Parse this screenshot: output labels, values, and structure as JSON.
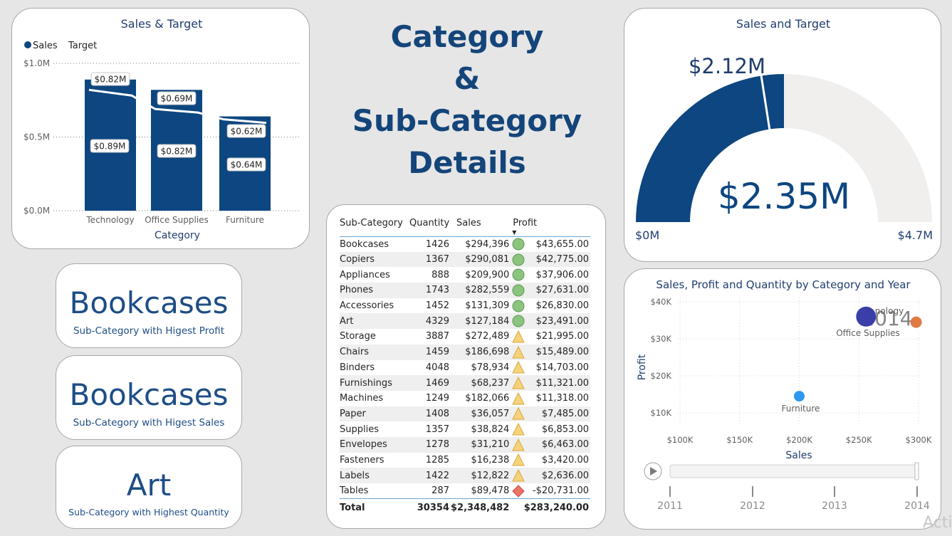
{
  "page_title": [
    "Category",
    "&",
    "Sub-Category",
    "Details"
  ],
  "bar_chart": {
    "title": "Sales & Target",
    "legend": [
      "Sales",
      "Target"
    ],
    "y_ticks": [
      "$1.0M",
      "$0.5M",
      "$0.0M"
    ],
    "x_label": "Category",
    "colors": {
      "sales": "#0d4680",
      "target": "#ffffff"
    }
  },
  "chart_data": [
    {
      "type": "bar",
      "title": "Sales & Target",
      "categories": [
        "Technology",
        "Office Supplies",
        "Furniture"
      ],
      "series": [
        {
          "name": "Sales",
          "values": [
            0.89,
            0.82,
            0.64
          ],
          "labels": [
            "$0.89M",
            "$0.82M",
            "$0.64M"
          ]
        },
        {
          "name": "Target",
          "values": [
            0.82,
            0.69,
            0.62
          ],
          "labels": [
            "$0.82M",
            "$0.69M",
            "$0.62M"
          ]
        }
      ],
      "xlabel": "Category",
      "ylabel": "",
      "ylim": [
        0,
        1.0
      ],
      "y_unit": "$M",
      "grid": true,
      "legend_position": "top-left"
    },
    {
      "type": "scatter",
      "title": "Sales, Profit and Quantity by Category and Year",
      "xlabel": "Sales",
      "ylabel": "Profit",
      "xlim": [
        100000,
        300000
      ],
      "ylim": [
        10000,
        40000
      ],
      "x_ticks": [
        "$100K",
        "$150K",
        "$200K",
        "$250K",
        "$300K"
      ],
      "y_ticks": [
        "$40K",
        "$30K",
        "$20K",
        "$10K"
      ],
      "points": [
        {
          "label": "Technology",
          "x": 256000,
          "y": 36000,
          "color": "#3a3ea8"
        },
        {
          "label": "Office Supplies",
          "x": 298000,
          "y": 34500,
          "color": "#e07a45"
        },
        {
          "label": "Furniture",
          "x": 200000,
          "y": 14500,
          "color": "#2e98ef"
        }
      ],
      "play_axis": {
        "years": [
          "2011",
          "2012",
          "2013",
          "2014"
        ],
        "current": "2014"
      }
    }
  ],
  "scatter_chart": {
    "title": "Sales, Profit and Quantity by Category and Year",
    "visible_point_labels": [
      "nology",
      "Office Supplies",
      "Furniture"
    ],
    "year_watermark": "2014"
  },
  "gauge": {
    "title": "Sales and Target",
    "value": "$2.35M",
    "target": "$2.12M",
    "min": "$0M",
    "max": "$4.7M",
    "value_fraction": 0.5,
    "target_fraction": 0.451,
    "colors": {
      "fill": "#0d4680",
      "track": "#f0efed"
    }
  },
  "kpis": [
    {
      "value": "Bookcases",
      "label": "Sub-Category with Higest Profit"
    },
    {
      "value": "Bookcases",
      "label": "Sub-Category with Higest Sales"
    },
    {
      "value": "Art",
      "label": "Sub-Category with Highest Quantity"
    }
  ],
  "table": {
    "headers": [
      "Sub-Category",
      "Quantity",
      "Sales",
      "Profit"
    ],
    "rows": [
      [
        "Bookcases",
        "1426",
        "$294,396",
        "green",
        "$43,655.00"
      ],
      [
        "Copiers",
        "1367",
        "$290,081",
        "green",
        "$42,775.00"
      ],
      [
        "Appliances",
        "888",
        "$209,900",
        "green",
        "$37,906.00"
      ],
      [
        "Phones",
        "1743",
        "$282,559",
        "green",
        "$27,631.00"
      ],
      [
        "Accessories",
        "1452",
        "$131,309",
        "green",
        "$26,830.00"
      ],
      [
        "Art",
        "4329",
        "$127,184",
        "green",
        "$23,491.00"
      ],
      [
        "Storage",
        "3887",
        "$272,489",
        "yellow",
        "$21,995.00"
      ],
      [
        "Chairs",
        "1459",
        "$186,698",
        "yellow",
        "$15,489.00"
      ],
      [
        "Binders",
        "4048",
        "$78,934",
        "yellow",
        "$14,703.00"
      ],
      [
        "Furnishings",
        "1469",
        "$68,237",
        "yellow",
        "$11,321.00"
      ],
      [
        "Machines",
        "1249",
        "$182,066",
        "yellow",
        "$11,318.00"
      ],
      [
        "Paper",
        "1408",
        "$36,057",
        "yellow",
        "$7,485.00"
      ],
      [
        "Supplies",
        "1357",
        "$38,824",
        "yellow",
        "$6,853.00"
      ],
      [
        "Envelopes",
        "1278",
        "$31,210",
        "yellow",
        "$6,463.00"
      ],
      [
        "Fasteners",
        "1285",
        "$16,238",
        "yellow",
        "$3,420.00"
      ],
      [
        "Labels",
        "1422",
        "$12,822",
        "yellow",
        "$2,636.00"
      ],
      [
        "Tables",
        "287",
        "$89,478",
        "red",
        "-$20,731.00"
      ]
    ],
    "total": [
      "Total",
      "30354",
      "$2,348,482",
      "$283,240.00"
    ],
    "sort_indicator": "descending",
    "icon_colors": {
      "green": "#8ac47f",
      "yellow": "#f6d27a",
      "red": "#ee7468"
    }
  },
  "watermark": "Acti"
}
